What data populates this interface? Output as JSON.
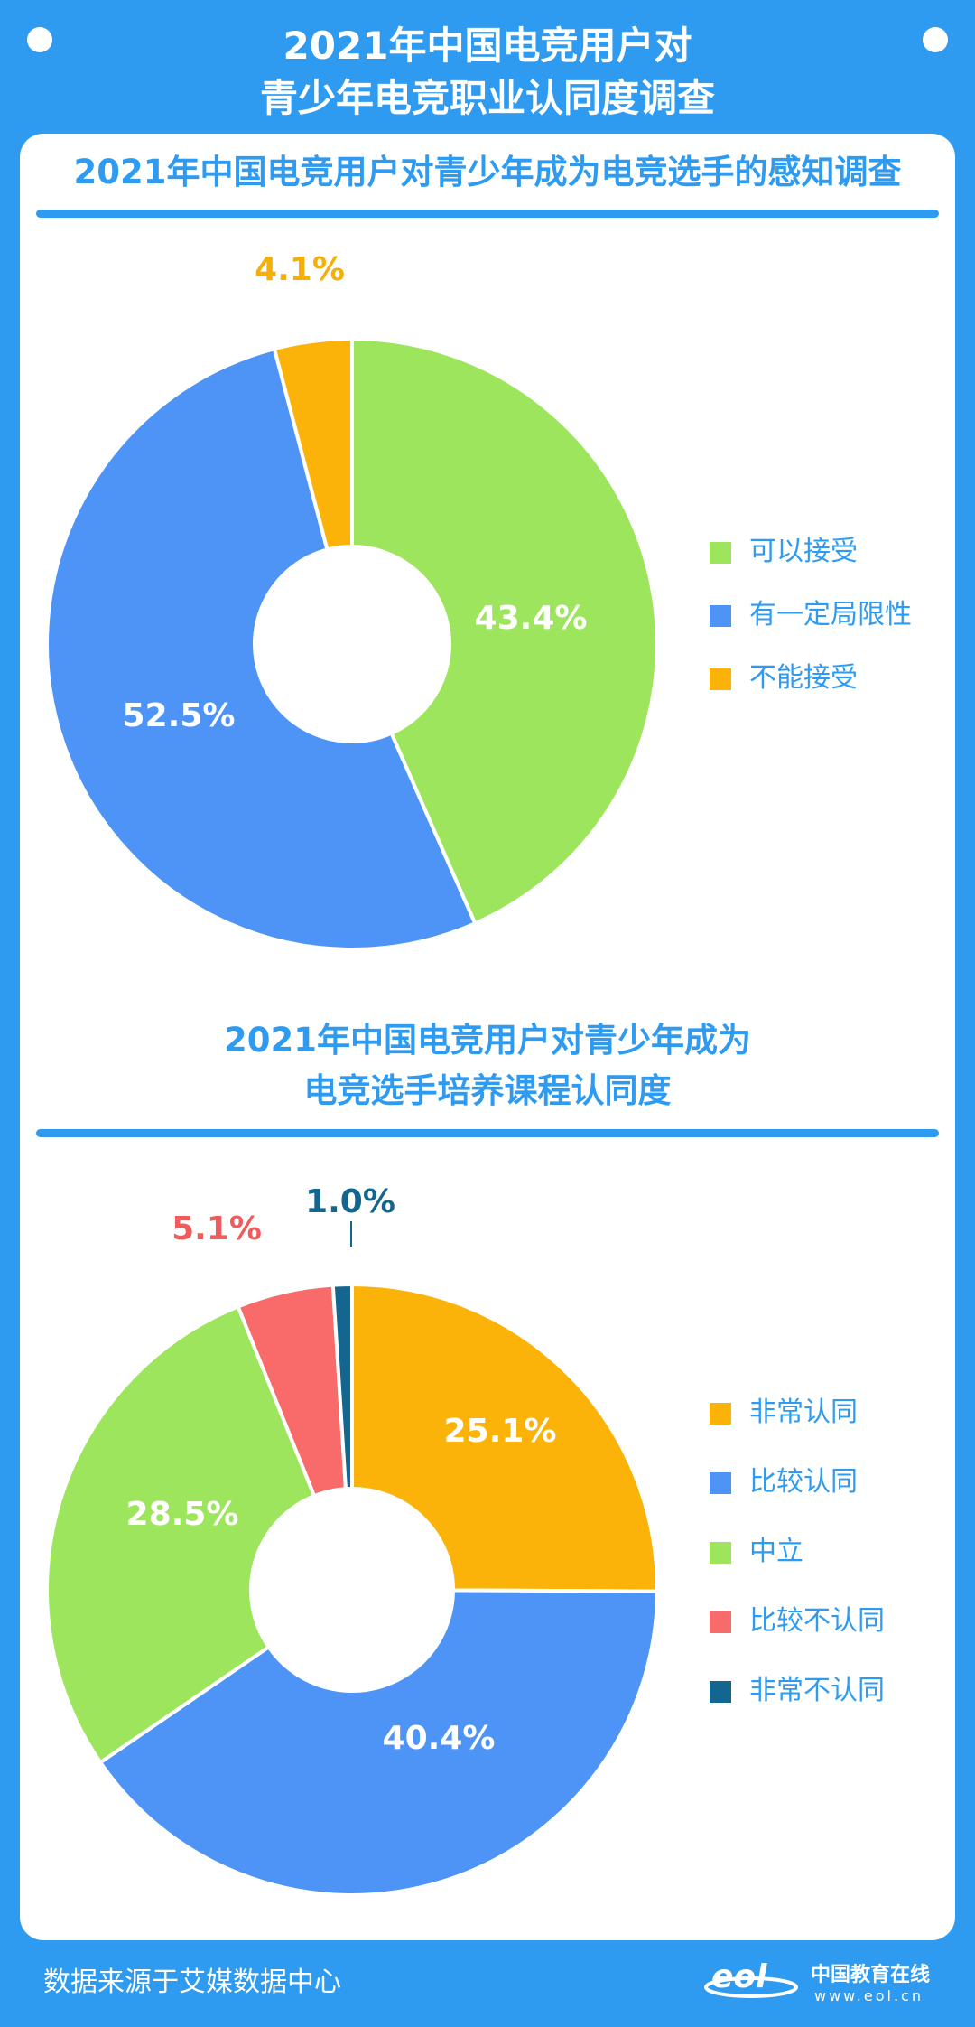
{
  "header": {
    "title_line1": "2021年中国电竞用户对",
    "title_line2": "青少年电竞职业认同度调查"
  },
  "footer": {
    "source": "数据来源于艾媒数据中心",
    "logo_cn": "中国教育在线",
    "logo_url": "www.eol.cn"
  },
  "chart_data": [
    {
      "type": "pie",
      "title": "2021年中国电竞用户对青少年成为电竞选手的感知调查",
      "donut": true,
      "unit": "%",
      "legend_position": "right",
      "slices": [
        {
          "name": "可以接受",
          "value": 43.4,
          "label": "43.4%",
          "color": "#9ee55e",
          "label_color": "#ffffff"
        },
        {
          "name": "有一定局限性",
          "value": 52.5,
          "label": "52.5%",
          "color": "#4e94f7",
          "label_color": "#ffffff"
        },
        {
          "name": "不能接受",
          "value": 4.1,
          "label": "4.1%",
          "color": "#fbb30a",
          "label_color": "#f5ae0a"
        }
      ]
    },
    {
      "type": "pie",
      "title_line1": "2021年中国电竞用户对青少年成为",
      "title_line2": "电竞选手培养课程认同度",
      "donut": true,
      "unit": "%",
      "legend_position": "right",
      "slices": [
        {
          "name": "非常认同",
          "value": 25.1,
          "label": "25.1%",
          "color": "#fbb30a",
          "label_color": "#ffffff"
        },
        {
          "name": "比较认同",
          "value": 40.4,
          "label": "40.4%",
          "color": "#4e94f7",
          "label_color": "#ffffff"
        },
        {
          "name": "中立",
          "value": 28.5,
          "label": "28.5%",
          "color": "#9ee55e",
          "label_color": "#ffffff"
        },
        {
          "name": "比较不认同",
          "value": 5.1,
          "label": "5.1%",
          "color": "#f96b6b",
          "label_color": "#f25b5b"
        },
        {
          "name": "非常不认同",
          "value": 1.0,
          "label": "1.0%",
          "color": "#13668f",
          "label_color": "#13668f"
        }
      ]
    }
  ]
}
